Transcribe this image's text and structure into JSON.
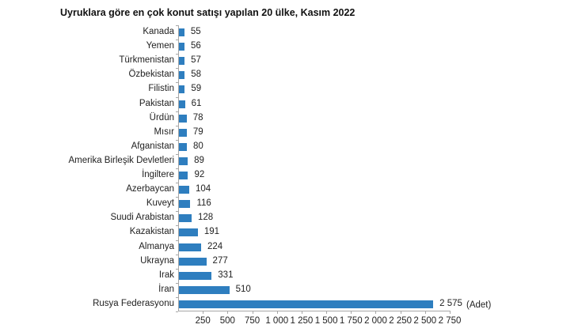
{
  "chart_data": {
    "type": "bar",
    "orientation": "horizontal",
    "title": "Uyruklara göre en çok konut satışı yapılan 20 ülke, Kasım 2022",
    "xlabel": "",
    "ylabel": "",
    "unit_label": "(Adet)",
    "xlim": [
      0,
      2750
    ],
    "grid": false,
    "legend": null,
    "bar_color": "#2e7ebf",
    "categories": [
      "Kanada",
      "Yemen",
      "Türkmenistan",
      "Özbekistan",
      "Filistin",
      "Pakistan",
      "Ürdün",
      "Mısır",
      "Afganistan",
      "Amerika Birleşik Devletleri",
      "İngiltere",
      "Azerbaycan",
      "Kuveyt",
      "Suudi Arabistan",
      "Kazakistan",
      "Almanya",
      "Ukrayna",
      "Irak",
      "İran",
      "Rusya Federasyonu"
    ],
    "values": [
      55,
      56,
      57,
      58,
      59,
      61,
      78,
      79,
      80,
      89,
      92,
      104,
      116,
      128,
      191,
      224,
      277,
      331,
      510,
      2575
    ],
    "value_labels": [
      "55",
      "56",
      "57",
      "58",
      "59",
      "61",
      "78",
      "79",
      "80",
      "89",
      "92",
      "104",
      "116",
      "128",
      "191",
      "224",
      "277",
      "331",
      "510",
      "2 575"
    ],
    "x_ticks": [
      250,
      500,
      750,
      1000,
      1250,
      1500,
      1750,
      2000,
      2250,
      2500,
      2750
    ],
    "x_tick_labels": [
      "250",
      "500",
      "750",
      "1 000",
      "1 250",
      "1 500",
      "1 750",
      "2 000",
      "2 250",
      "2 500",
      "2 750"
    ]
  }
}
